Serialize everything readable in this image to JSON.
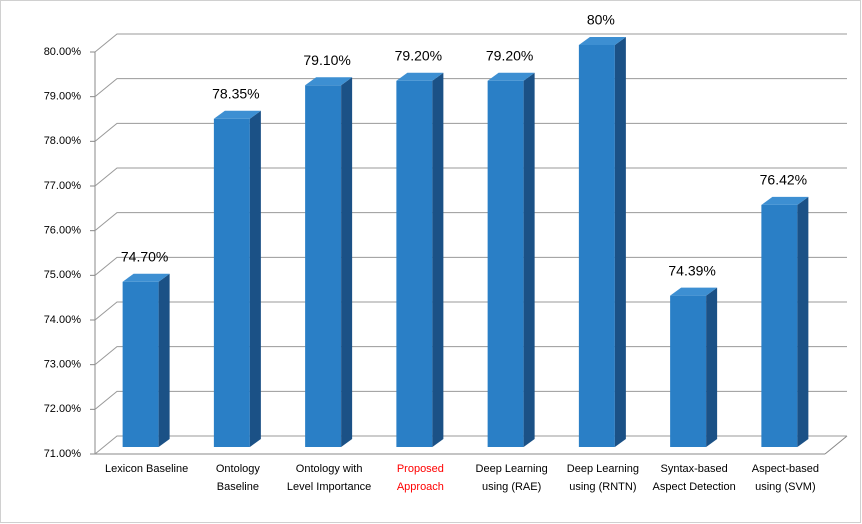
{
  "chart_data": {
    "type": "bar3d",
    "categories": [
      "Lexicon Baseline",
      "Ontology Baseline",
      "Ontology with Level Importance",
      "Proposed Approach",
      "Deep Learning using (RAE)",
      "Deep Learning using (RNTN)",
      "Syntax-based Aspect Detection",
      "Aspect-based using (SVM)"
    ],
    "category_label_colors": [
      "#000000",
      "#000000",
      "#000000",
      "#ff0000",
      "#000000",
      "#000000",
      "#000000",
      "#000000"
    ],
    "values": [
      74.7,
      78.35,
      79.1,
      79.2,
      79.2,
      80,
      74.39,
      76.42
    ],
    "value_labels": [
      "74.70%",
      "78.35%",
      "79.10%",
      "79.20%",
      "79.20%",
      "80%",
      "74.39%",
      "76.42%"
    ],
    "color": "#2a7fc6",
    "ylim": [
      71,
      80
    ],
    "yticks": [
      {
        "value": 71,
        "label": "71.00%"
      },
      {
        "value": 72,
        "label": "72.00%"
      },
      {
        "value": 73,
        "label": "73.00%"
      },
      {
        "value": 74,
        "label": "74.00%"
      },
      {
        "value": 75,
        "label": "75.00%"
      },
      {
        "value": 76,
        "label": "76.00%"
      },
      {
        "value": 77,
        "label": "77.00%"
      },
      {
        "value": 78,
        "label": "78.00%"
      },
      {
        "value": 79,
        "label": "79.00%"
      },
      {
        "value": 80,
        "label": "80.00%"
      }
    ],
    "grid": true
  }
}
